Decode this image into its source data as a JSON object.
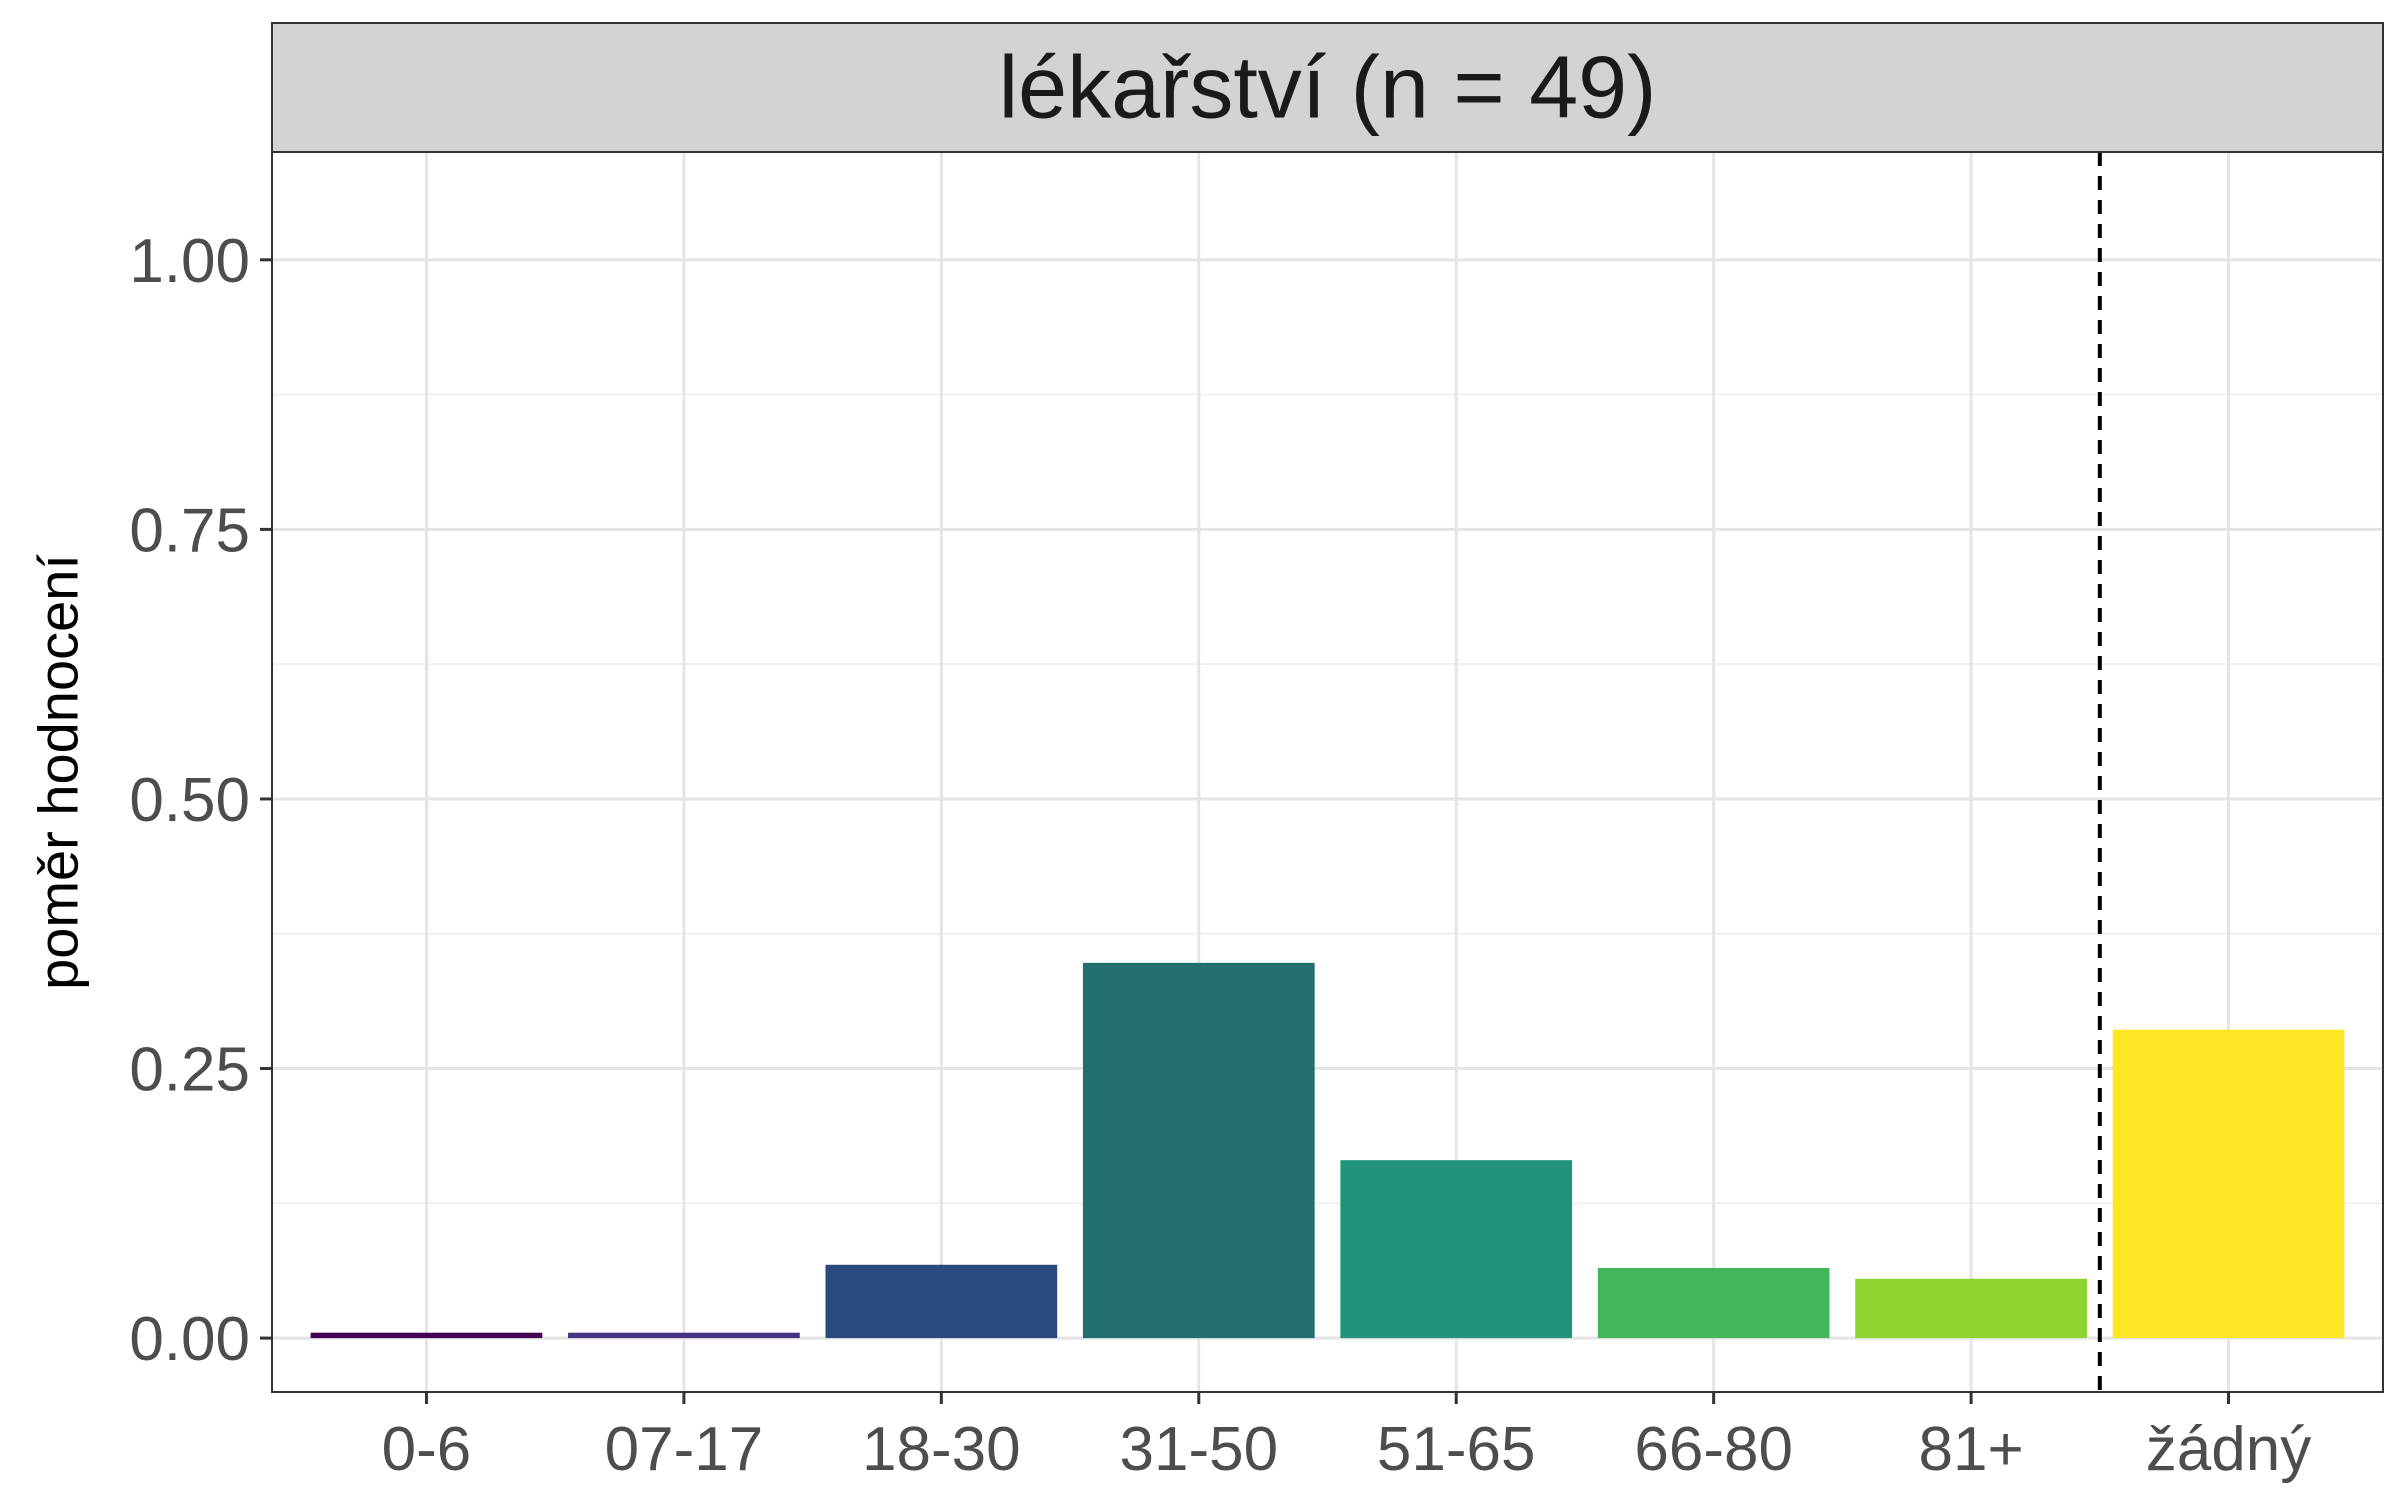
{
  "chart_data": {
    "type": "bar",
    "title": "lékařství (n = 49)",
    "xlabel": "",
    "ylabel": "poměr hodnocení",
    "categories": [
      "0-6",
      "07-17",
      "18-30",
      "31-50",
      "51-65",
      "66-80",
      "81+",
      "žádný"
    ],
    "values": [
      0.005,
      0.005,
      0.068,
      0.348,
      0.165,
      0.065,
      0.055,
      0.286
    ],
    "colors": [
      "#440154",
      "#46327E",
      "#2A4A7D",
      "#21706F",
      "#21937A",
      "#43B85B",
      "#8DD42F",
      "#FDE725"
    ],
    "ylim": [
      -0.05,
      1.1
    ],
    "yticks": [
      0,
      0.25,
      0.5,
      0.75,
      1.0
    ],
    "ytick_labels": [
      "0.00",
      "0.25",
      "0.50",
      "0.75",
      "1.00"
    ],
    "grid": true,
    "separator_line": "dashed line between 81+ and žádný",
    "legend": "none"
  }
}
